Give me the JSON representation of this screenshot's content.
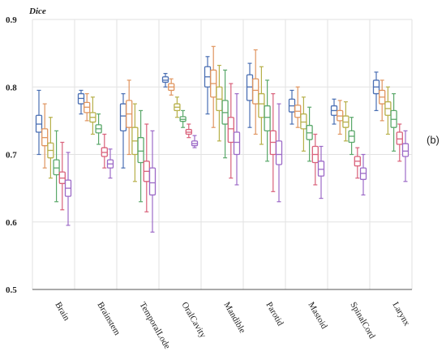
{
  "chart_data": {
    "type": "box",
    "ylabel": "Dice",
    "panel_label": "(b)",
    "ylim": [
      0.5,
      0.9
    ],
    "yticks": [
      0.5,
      0.6,
      0.7,
      0.8,
      0.9
    ],
    "grid": true,
    "series_colors": [
      "#4a6fb3",
      "#e0955f",
      "#b7b04a",
      "#5aa86a",
      "#d9607a",
      "#9c6ac7"
    ],
    "categories": [
      "Brain",
      "Brainstem",
      "TemporalLode",
      "OralCavity",
      "Mandible",
      "Parotid",
      "Mastoid",
      "SpinalCord",
      "Larynx"
    ],
    "boxes": [
      [
        {
          "min": 0.7,
          "q1": 0.733,
          "median": 0.745,
          "q3": 0.758,
          "max": 0.795
        },
        {
          "min": 0.68,
          "q1": 0.713,
          "median": 0.725,
          "q3": 0.738,
          "max": 0.775
        },
        {
          "min": 0.665,
          "q1": 0.695,
          "median": 0.706,
          "q3": 0.717,
          "max": 0.755
        },
        {
          "min": 0.63,
          "q1": 0.67,
          "median": 0.68,
          "q3": 0.692,
          "max": 0.735
        },
        {
          "min": 0.618,
          "q1": 0.657,
          "median": 0.665,
          "q3": 0.674,
          "max": 0.718
        },
        {
          "min": 0.595,
          "q1": 0.638,
          "median": 0.65,
          "q3": 0.662,
          "max": 0.703
        }
      ],
      [
        {
          "min": 0.76,
          "q1": 0.775,
          "median": 0.783,
          "q3": 0.79,
          "max": 0.795
        },
        {
          "min": 0.75,
          "q1": 0.762,
          "median": 0.77,
          "q3": 0.777,
          "max": 0.79
        },
        {
          "min": 0.73,
          "q1": 0.748,
          "median": 0.755,
          "q3": 0.762,
          "max": 0.785
        },
        {
          "min": 0.715,
          "q1": 0.732,
          "median": 0.738,
          "q3": 0.744,
          "max": 0.76
        },
        {
          "min": 0.68,
          "q1": 0.697,
          "median": 0.703,
          "q3": 0.71,
          "max": 0.73
        },
        {
          "min": 0.665,
          "q1": 0.68,
          "median": 0.686,
          "q3": 0.692,
          "max": 0.708
        }
      ],
      [
        {
          "min": 0.68,
          "q1": 0.735,
          "median": 0.757,
          "q3": 0.775,
          "max": 0.79
        },
        {
          "min": 0.7,
          "q1": 0.74,
          "median": 0.76,
          "q3": 0.78,
          "max": 0.81
        },
        {
          "min": 0.66,
          "q1": 0.7,
          "median": 0.72,
          "q3": 0.74,
          "max": 0.775
        },
        {
          "min": 0.63,
          "q1": 0.688,
          "median": 0.705,
          "q3": 0.725,
          "max": 0.765
        },
        {
          "min": 0.615,
          "q1": 0.66,
          "median": 0.675,
          "q3": 0.69,
          "max": 0.745
        },
        {
          "min": 0.585,
          "q1": 0.64,
          "median": 0.658,
          "q3": 0.68,
          "max": 0.735
        }
      ],
      [
        {
          "min": 0.8,
          "q1": 0.807,
          "median": 0.81,
          "q3": 0.815,
          "max": 0.82
        },
        {
          "min": 0.788,
          "q1": 0.795,
          "median": 0.8,
          "q3": 0.805,
          "max": 0.812
        },
        {
          "min": 0.755,
          "q1": 0.765,
          "median": 0.77,
          "q3": 0.775,
          "max": 0.785
        },
        {
          "min": 0.74,
          "q1": 0.749,
          "median": 0.752,
          "q3": 0.756,
          "max": 0.765
        },
        {
          "min": 0.725,
          "q1": 0.73,
          "median": 0.733,
          "q3": 0.737,
          "max": 0.745
        },
        {
          "min": 0.71,
          "q1": 0.713,
          "median": 0.716,
          "q3": 0.72,
          "max": 0.728
        }
      ],
      [
        {
          "min": 0.76,
          "q1": 0.8,
          "median": 0.815,
          "q3": 0.83,
          "max": 0.845
        },
        {
          "min": 0.74,
          "q1": 0.785,
          "median": 0.805,
          "q3": 0.825,
          "max": 0.86
        },
        {
          "min": 0.72,
          "q1": 0.765,
          "median": 0.782,
          "q3": 0.8,
          "max": 0.832
        },
        {
          "min": 0.695,
          "q1": 0.745,
          "median": 0.762,
          "q3": 0.78,
          "max": 0.825
        },
        {
          "min": 0.665,
          "q1": 0.718,
          "median": 0.738,
          "q3": 0.755,
          "max": 0.805
        },
        {
          "min": 0.655,
          "q1": 0.7,
          "median": 0.718,
          "q3": 0.733,
          "max": 0.79
        }
      ],
      [
        {
          "min": 0.74,
          "q1": 0.78,
          "median": 0.8,
          "q3": 0.818,
          "max": 0.835
        },
        {
          "min": 0.73,
          "q1": 0.775,
          "median": 0.795,
          "q3": 0.812,
          "max": 0.855
        },
        {
          "min": 0.715,
          "q1": 0.755,
          "median": 0.775,
          "q3": 0.79,
          "max": 0.83
        },
        {
          "min": 0.69,
          "q1": 0.735,
          "median": 0.755,
          "q3": 0.772,
          "max": 0.81
        },
        {
          "min": 0.645,
          "q1": 0.7,
          "median": 0.718,
          "q3": 0.735,
          "max": 0.79
        },
        {
          "min": 0.63,
          "q1": 0.685,
          "median": 0.7,
          "q3": 0.72,
          "max": 0.775
        }
      ],
      [
        {
          "min": 0.745,
          "q1": 0.763,
          "median": 0.772,
          "q3": 0.782,
          "max": 0.795
        },
        {
          "min": 0.74,
          "q1": 0.755,
          "median": 0.764,
          "q3": 0.773,
          "max": 0.8
        },
        {
          "min": 0.705,
          "q1": 0.738,
          "median": 0.748,
          "q3": 0.76,
          "max": 0.785
        },
        {
          "min": 0.69,
          "q1": 0.722,
          "median": 0.732,
          "q3": 0.743,
          "max": 0.77
        },
        {
          "min": 0.655,
          "q1": 0.688,
          "median": 0.7,
          "q3": 0.712,
          "max": 0.73
        },
        {
          "min": 0.635,
          "q1": 0.668,
          "median": 0.678,
          "q3": 0.69,
          "max": 0.712
        }
      ],
      [
        {
          "min": 0.745,
          "q1": 0.758,
          "median": 0.765,
          "q3": 0.772,
          "max": 0.782
        },
        {
          "min": 0.73,
          "q1": 0.75,
          "median": 0.757,
          "q3": 0.765,
          "max": 0.78
        },
        {
          "min": 0.72,
          "q1": 0.74,
          "median": 0.748,
          "q3": 0.757,
          "max": 0.778
        },
        {
          "min": 0.7,
          "q1": 0.718,
          "median": 0.727,
          "q3": 0.735,
          "max": 0.755
        },
        {
          "min": 0.665,
          "q1": 0.683,
          "median": 0.69,
          "q3": 0.697,
          "max": 0.71
        },
        {
          "min": 0.64,
          "q1": 0.663,
          "median": 0.672,
          "q3": 0.68,
          "max": 0.7
        }
      ],
      [
        {
          "min": 0.765,
          "q1": 0.79,
          "median": 0.8,
          "q3": 0.81,
          "max": 0.822
        },
        {
          "min": 0.75,
          "q1": 0.775,
          "median": 0.785,
          "q3": 0.795,
          "max": 0.81
        },
        {
          "min": 0.73,
          "q1": 0.758,
          "median": 0.768,
          "q3": 0.778,
          "max": 0.8
        },
        {
          "min": 0.705,
          "q1": 0.74,
          "median": 0.752,
          "q3": 0.765,
          "max": 0.79
        },
        {
          "min": 0.69,
          "q1": 0.715,
          "median": 0.723,
          "q3": 0.733,
          "max": 0.745
        },
        {
          "min": 0.66,
          "q1": 0.697,
          "median": 0.705,
          "q3": 0.716,
          "max": 0.735
        }
      ]
    ]
  }
}
